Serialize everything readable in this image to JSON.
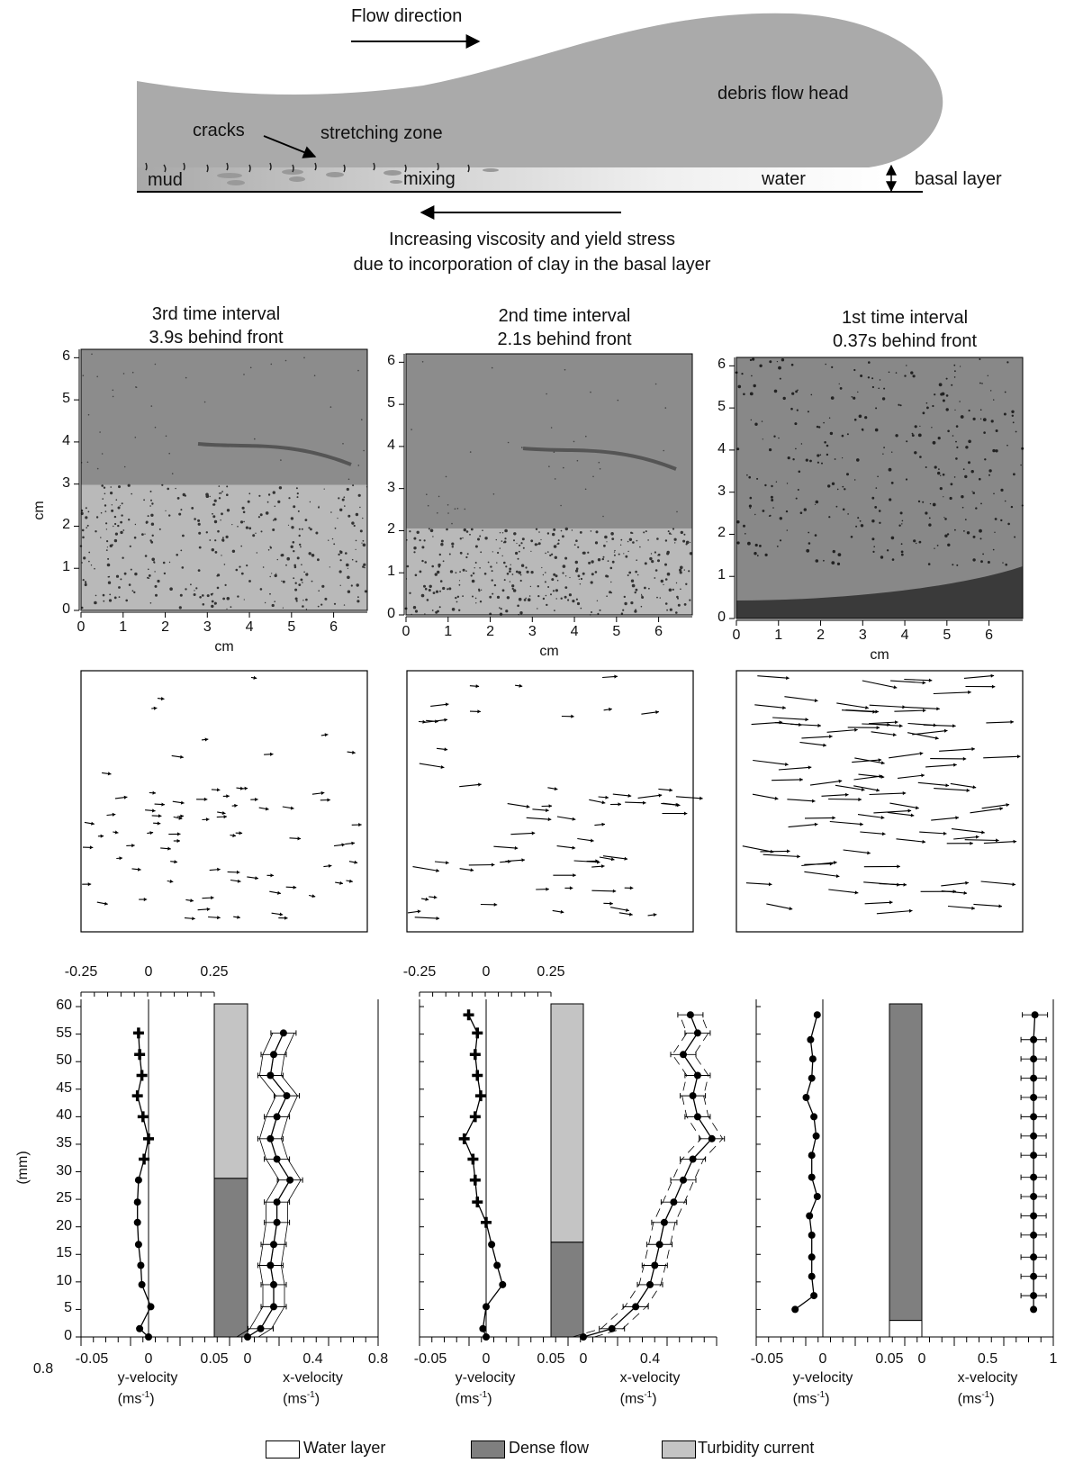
{
  "schematic": {
    "flow_direction": "Flow direction",
    "debris_flow_head": "debris flow head",
    "cracks": "cracks",
    "stretching_zone": "stretching zone",
    "mud": "mud",
    "mixing": "mixing",
    "water": "water",
    "basal_layer": "basal layer",
    "caption_line1": "Increasing viscosity and yield stress",
    "caption_line2": "due to incorporation of clay in the basal layer"
  },
  "panels": [
    {
      "title_line1": "3rd time interval",
      "title_line2": "3.9s behind front"
    },
    {
      "title_line1": "2nd time interval",
      "title_line2": "2.1s behind front"
    },
    {
      "title_line1": "1st time interval",
      "title_line2": "0.37s behind front"
    }
  ],
  "image_axes": {
    "unit": "cm",
    "x_ticks": [
      "0",
      "1",
      "2",
      "3",
      "4",
      "5",
      "6"
    ],
    "y_ticks": [
      "0",
      "1",
      "2",
      "3",
      "4",
      "5",
      "6"
    ]
  },
  "profile_axes": {
    "ylabel": "(mm)",
    "y_ticks": [
      "0",
      "5",
      "10",
      "15",
      "20",
      "25",
      "30",
      "35",
      "40",
      "45",
      "50",
      "55",
      "60"
    ],
    "y_top_ticks": [
      "-0.25",
      "0",
      "0.25"
    ],
    "y_bottom_ticks": [
      "-0.05",
      "0",
      "0.05"
    ],
    "yvel_label": "y-velocity",
    "xvel_label": "x-velocity",
    "unit_label": "(ms-1)",
    "left_edge_tick": "0.8",
    "panel_x_ticks": [
      {
        "mid": "0.4",
        "end": "0.8"
      },
      {
        "mid": "0.4",
        "end": ""
      },
      {
        "mid": "0.5",
        "end": "1"
      }
    ]
  },
  "legend": {
    "water": "Water layer",
    "dense": "Dense flow",
    "turbidity": "Turbidity current"
  },
  "colors": {
    "head_gray": "#aaaaaa",
    "dense_flow": "#7f7f7f",
    "turbidity_current": "#c4c4c4",
    "water_layer": "#ffffff",
    "dark_image": "#3a3a3a",
    "axis": "#000000"
  },
  "chart_data": [
    {
      "type": "line",
      "panel": "3rd time interval",
      "y_mm": [
        0,
        1.5,
        5.5,
        9.5,
        13,
        16.8,
        20.8,
        24.5,
        28.5,
        32.3,
        36,
        40,
        43.8,
        47.5,
        51.3,
        55.2
      ],
      "y_velocity": [
        0,
        -0.008,
        0.002,
        -0.006,
        -0.007,
        -0.009,
        -0.01,
        -0.01,
        -0.009,
        -0.004,
        0.0,
        -0.005,
        -0.01,
        -0.006,
        -0.008,
        -0.009
      ],
      "x_velocity": [
        0,
        0.08,
        0.16,
        0.16,
        0.14,
        0.16,
        0.18,
        0.18,
        0.26,
        0.18,
        0.14,
        0.18,
        0.24,
        0.14,
        0.16,
        0.22
      ],
      "dense_flow_mm": [
        0,
        28.8
      ],
      "turbidity_current_mm": [
        28.8,
        60.5
      ]
    },
    {
      "type": "line",
      "panel": "2nd time interval",
      "y_mm": [
        0,
        1.5,
        5.5,
        9.5,
        13,
        16.8,
        20.8,
        24.5,
        28.5,
        32.3,
        36,
        40,
        43.8,
        47.5,
        51.3,
        55.2,
        58.5
      ],
      "y_velocity": [
        0,
        -0.003,
        0.0,
        0.015,
        0.01,
        0.005,
        0.0,
        -0.008,
        -0.01,
        -0.012,
        -0.02,
        -0.01,
        -0.005,
        -0.008,
        -0.01,
        -0.008,
        -0.016
      ],
      "x_velocity": [
        0,
        0.12,
        0.22,
        0.28,
        0.3,
        0.32,
        0.34,
        0.38,
        0.42,
        0.46,
        0.54,
        0.48,
        0.46,
        0.48,
        0.42,
        0.48,
        0.45
      ],
      "dense_flow_mm": [
        0,
        17.2
      ],
      "turbidity_current_mm": [
        17.2,
        60.5
      ]
    },
    {
      "type": "line",
      "panel": "1st time interval",
      "y_mm": [
        5,
        7.5,
        11,
        14.5,
        18.5,
        22,
        25.5,
        29,
        33,
        36.5,
        40,
        43.5,
        47,
        50.5,
        54,
        58.5
      ],
      "y_velocity": [
        -0.025,
        -0.008,
        -0.01,
        -0.01,
        -0.01,
        -0.012,
        -0.005,
        -0.01,
        -0.01,
        -0.006,
        -0.008,
        -0.015,
        -0.01,
        -0.009,
        -0.011,
        -0.005
      ],
      "x_velocity": [
        0.85,
        0.85,
        0.85,
        0.85,
        0.85,
        0.85,
        0.85,
        0.85,
        0.85,
        0.85,
        0.85,
        0.85,
        0.85,
        0.85,
        0.85,
        0.86
      ],
      "dense_flow_mm": [
        3,
        60.5
      ],
      "water_layer_mm": [
        0,
        3
      ]
    }
  ]
}
